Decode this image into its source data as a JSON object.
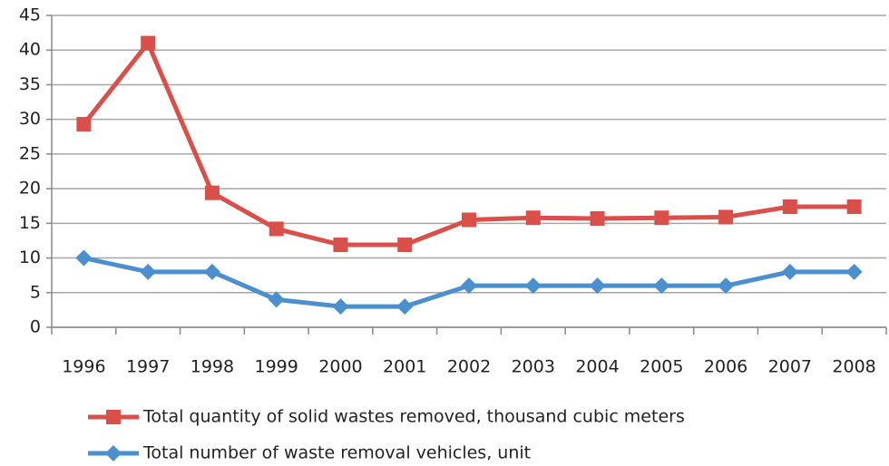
{
  "chart_data": {
    "type": "line",
    "categories": [
      "1996",
      "1997",
      "1998",
      "1999",
      "2000",
      "2001",
      "2002",
      "2003",
      "2004",
      "2005",
      "2006",
      "2007",
      "2008"
    ],
    "series": [
      {
        "name": "Total quantity of solid wastes removed, thousand cubic meters",
        "color": "#d9504a",
        "marker": "square",
        "values": [
          29.3,
          41,
          19.4,
          14.2,
          11.9,
          11.9,
          15.5,
          15.8,
          15.7,
          15.8,
          15.9,
          17.4,
          17.4
        ]
      },
      {
        "name": "Total number of waste removal vehicles, unit",
        "color": "#4b8fcf",
        "marker": "diamond",
        "values": [
          10,
          8,
          8,
          4,
          3,
          3,
          6,
          6,
          6,
          6,
          6,
          8,
          8
        ]
      }
    ],
    "ylim": [
      0,
      45
    ],
    "yticks": [
      0,
      5,
      10,
      15,
      20,
      25,
      30,
      35,
      40,
      45
    ],
    "grid": true
  }
}
